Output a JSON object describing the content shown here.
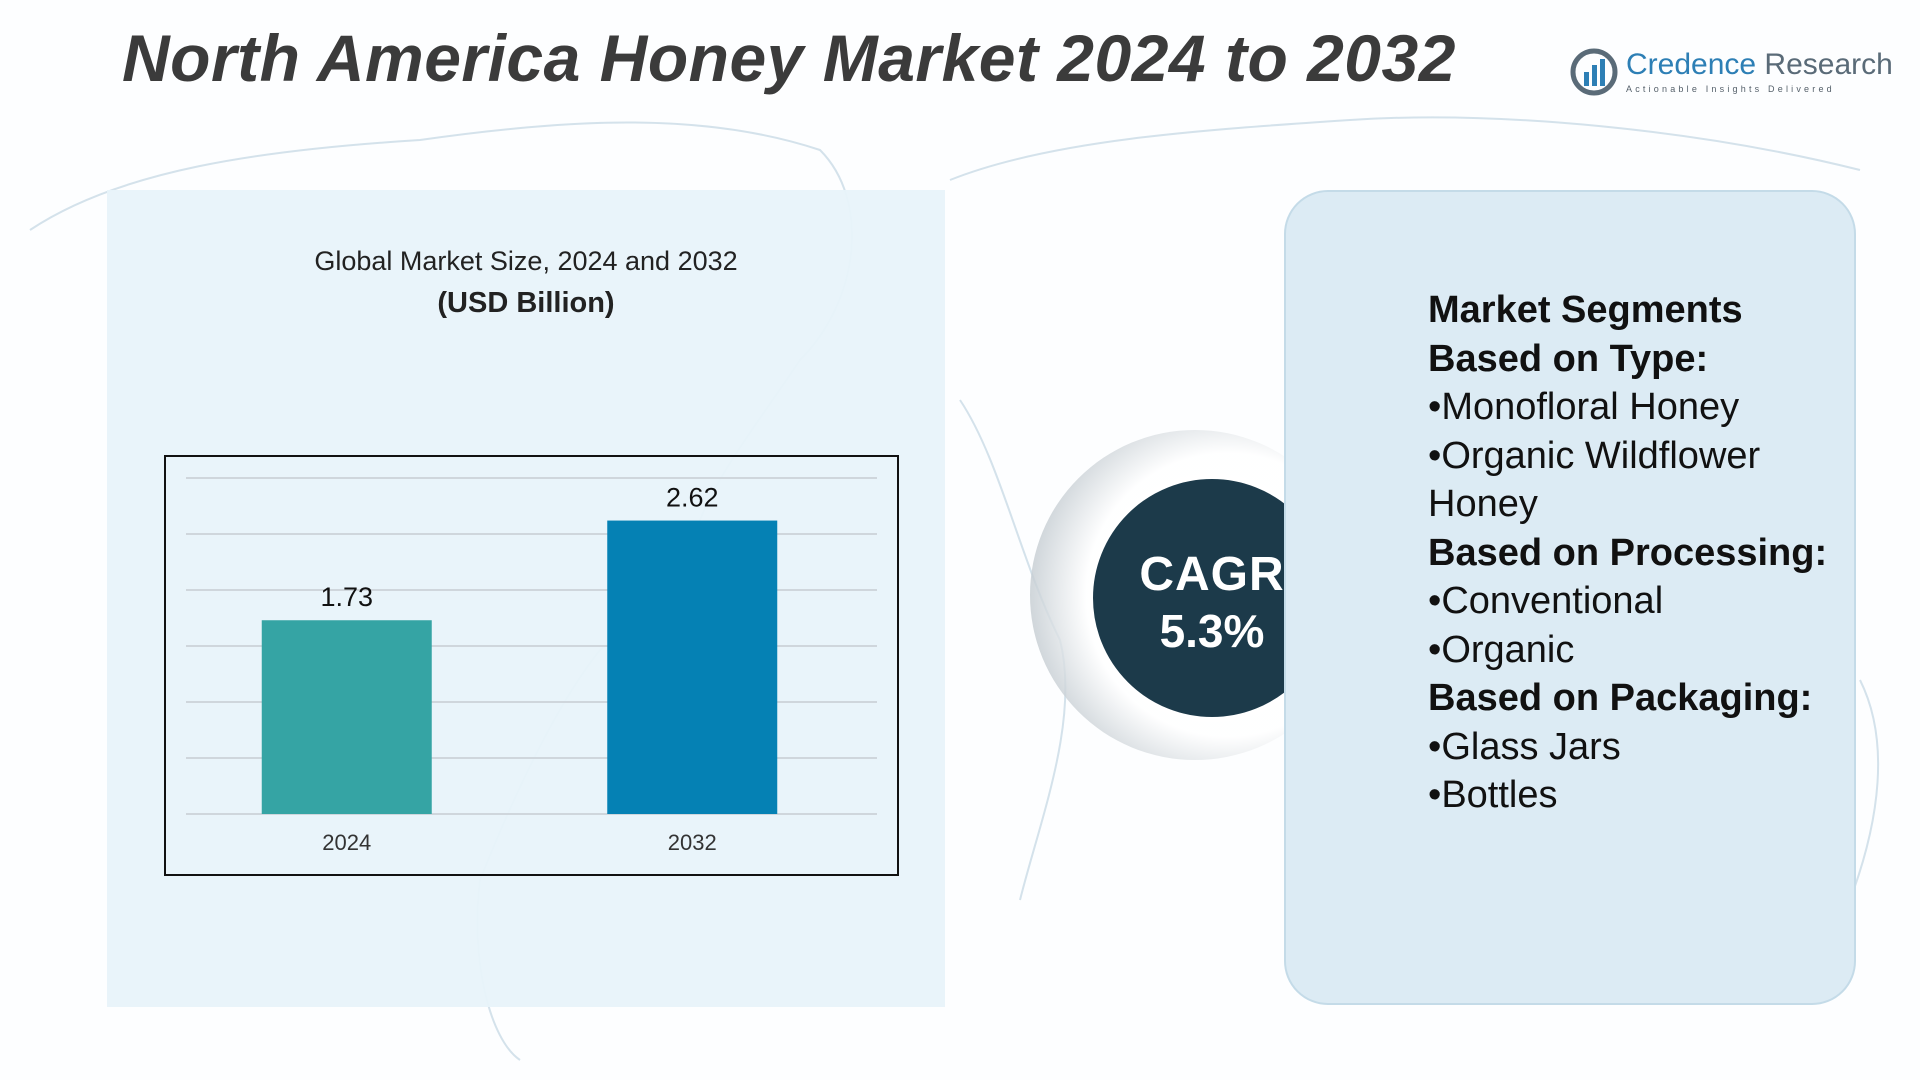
{
  "title": "North America Honey Market 2024 to 2032",
  "logo": {
    "name_part1": "Credence",
    "name_part2": " Research",
    "tagline": "Actionable Insights Delivered"
  },
  "chart_data": {
    "type": "bar",
    "title": "Global Market Size, 2024 and 2032",
    "subtitle": "(USD Billion)",
    "categories": [
      "2024",
      "2032"
    ],
    "values": [
      1.73,
      2.62
    ],
    "data_labels": [
      "1.73",
      "2.62"
    ],
    "colors": [
      "#35a4a4",
      "#0581b4"
    ],
    "ylim": [
      0,
      3
    ],
    "grid": true,
    "y_axis_labels_shown": false
  },
  "cagr": {
    "label": "CAGR",
    "value": "5.3%"
  },
  "segments": {
    "heading": "Market Segments",
    "groups": [
      {
        "title": "Based on Type:",
        "items": [
          "Monofloral Honey",
          "Organic Wildflower Honey"
        ]
      },
      {
        "title": "Based on Processing:",
        "items": [
          "Conventional",
          "Organic"
        ]
      },
      {
        "title": "Based on Packaging:",
        "items": [
          "Glass Jars",
          "Bottles"
        ]
      }
    ]
  }
}
